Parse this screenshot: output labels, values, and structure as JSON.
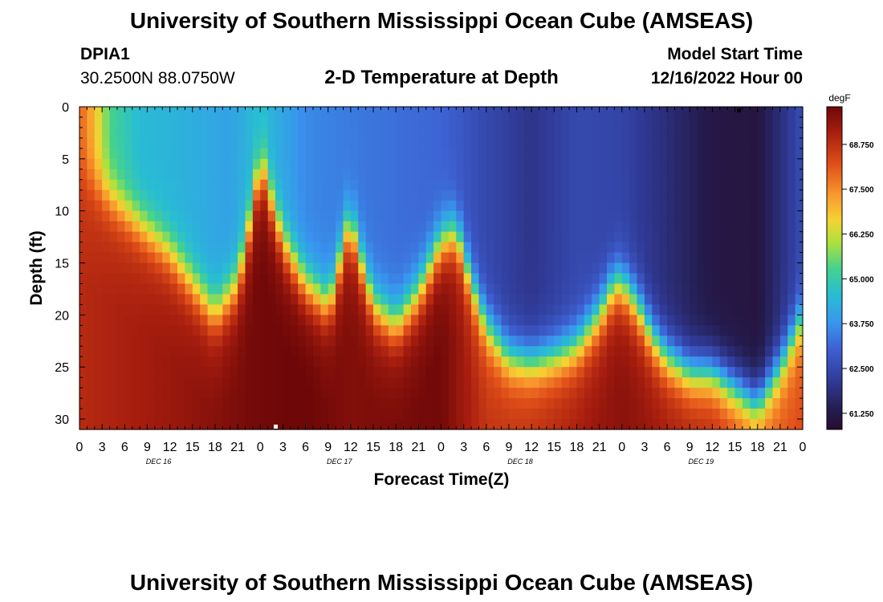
{
  "header": {
    "title": "University of Southern Mississippi Ocean Cube (AMSEAS)",
    "station_id": "DPIA1",
    "coordinates": "30.2500N  88.0750W",
    "subtitle": "2-D Temperature at Depth",
    "model_start_label": "Model Start Time",
    "model_start_value": "12/16/2022 Hour 00"
  },
  "footer": {
    "title": "University of Southern Mississippi Ocean Cube (AMSEAS)"
  },
  "chart_data": {
    "type": "heatmap",
    "title": "2-D Temperature at Depth",
    "xlabel": "Forecast Time(Z)",
    "ylabel": "Depth (ft)",
    "x_tick_labels": [
      "0",
      "3",
      "6",
      "9",
      "12",
      "15",
      "18",
      "21",
      "0",
      "3",
      "6",
      "9",
      "12",
      "15",
      "18",
      "21",
      "0",
      "3",
      "6",
      "9",
      "12",
      "15",
      "18",
      "21",
      "0",
      "3",
      "6",
      "9",
      "12",
      "15",
      "18",
      "21",
      "0"
    ],
    "day_labels": [
      "DEC 16",
      "DEC 17",
      "DEC 18",
      "DEC 19"
    ],
    "x_range_hours": [
      0,
      96
    ],
    "y_tick_labels": [
      "0",
      "5",
      "10",
      "15",
      "20",
      "25",
      "30"
    ],
    "y_range_ft": [
      0,
      31
    ],
    "colorbar": {
      "unit": "degF",
      "tick_labels": [
        "68.750",
        "67.500",
        "66.250",
        "65.000",
        "63.750",
        "62.500",
        "61.250"
      ],
      "tick_values": [
        68.75,
        67.5,
        66.25,
        65.0,
        63.75,
        62.5,
        61.25
      ],
      "range": [
        60.8,
        69.8
      ]
    },
    "surface_temperature_by_hour": [
      [
        0,
        68.0
      ],
      [
        2,
        66.9
      ],
      [
        4,
        65.3
      ],
      [
        8,
        64.5
      ],
      [
        14,
        64.3
      ],
      [
        20,
        64.0
      ],
      [
        24,
        64.6
      ],
      [
        30,
        63.6
      ],
      [
        36,
        63.4
      ],
      [
        48,
        63.1
      ],
      [
        54,
        62.5
      ],
      [
        60,
        62.0
      ],
      [
        66,
        62.5
      ],
      [
        72,
        62.4
      ],
      [
        78,
        61.8
      ],
      [
        84,
        61.2
      ],
      [
        90,
        61.1
      ],
      [
        96,
        62.6
      ]
    ],
    "bottom_temperature_by_hour": [
      [
        0,
        68.5
      ],
      [
        12,
        68.9
      ],
      [
        24,
        69.4
      ],
      [
        30,
        69.5
      ],
      [
        36,
        69.2
      ],
      [
        48,
        69.4
      ],
      [
        54,
        68.3
      ],
      [
        60,
        68.4
      ],
      [
        72,
        69.1
      ],
      [
        84,
        68.5
      ],
      [
        90,
        67.7
      ],
      [
        96,
        67.9
      ]
    ],
    "thermocline_depth_ft_by_hour": [
      [
        0,
        6
      ],
      [
        3,
        8
      ],
      [
        6,
        10
      ],
      [
        9,
        12
      ],
      [
        12,
        14
      ],
      [
        15,
        17
      ],
      [
        18,
        20
      ],
      [
        21,
        17
      ],
      [
        23,
        10
      ],
      [
        24,
        5
      ],
      [
        25,
        8
      ],
      [
        27,
        13
      ],
      [
        30,
        17
      ],
      [
        33,
        19
      ],
      [
        34,
        17
      ],
      [
        35,
        13
      ],
      [
        36,
        11
      ],
      [
        37,
        14
      ],
      [
        39,
        19
      ],
      [
        42,
        21
      ],
      [
        45,
        18
      ],
      [
        48,
        13
      ],
      [
        50,
        12
      ],
      [
        52,
        17
      ],
      [
        54,
        21
      ],
      [
        57,
        24
      ],
      [
        60,
        24.5
      ],
      [
        63,
        24
      ],
      [
        66,
        23
      ],
      [
        69,
        20
      ],
      [
        71,
        17
      ],
      [
        72,
        17
      ],
      [
        74,
        19
      ],
      [
        76,
        22
      ],
      [
        78,
        24
      ],
      [
        81,
        25.5
      ],
      [
        84,
        25.5
      ],
      [
        87,
        27
      ],
      [
        90,
        28.5
      ],
      [
        93,
        25
      ],
      [
        96,
        20
      ]
    ]
  }
}
